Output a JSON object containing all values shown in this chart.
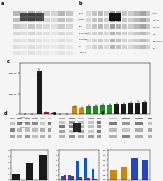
{
  "bg_color": "#f5f5f5",
  "panel_c_bars": [
    800,
    1500,
    420000,
    15000,
    9000,
    4000,
    2500,
    75000,
    62000,
    78000,
    82000,
    88000,
    92000,
    95000,
    100000,
    105000,
    112000,
    118000
  ],
  "panel_c_colors": [
    "#1a1a1a",
    "#1a1a1a",
    "#1a1a1a",
    "#cc1111",
    "#cc1111",
    "#cc1111",
    "#cc1111",
    "#cc8800",
    "#cc8800",
    "#228B22",
    "#228B22",
    "#228B22",
    "#228B22",
    "#1a1a1a",
    "#1a1a1a",
    "#1a1a1a",
    "#1a1a1a",
    "#1a1a1a"
  ],
  "panel_c_errors": [
    100,
    200,
    18000,
    1500,
    1000,
    500,
    300,
    6000,
    5500,
    7000,
    7500,
    8000,
    8500,
    9000,
    9500,
    10000,
    10500,
    11000
  ],
  "panel_c_ylim": [
    0,
    500000
  ],
  "panel_c_yticks": [
    0,
    200000,
    400000
  ],
  "panel_c_yticklabels": [
    "0",
    "200000",
    "400000"
  ],
  "panel_d_bars": [
    1.0,
    2.8,
    4.2
  ],
  "panel_d_colors": [
    "#1a1a1a",
    "#1a1a1a",
    "#1a1a1a"
  ],
  "panel_e_bars_blue": [
    0.8,
    1.0,
    3.8,
    4.5,
    2.2
  ],
  "panel_e_bars_red": [
    0.9,
    0.7,
    0.5,
    0.3,
    0.2
  ],
  "panel_f_bars": [
    1.0,
    1.3,
    2.2,
    2.0
  ],
  "panel_f_colors": [
    "#cc8800",
    "#cc8800",
    "#2244cc",
    "#2244cc"
  ],
  "wb_bg": "#d8d8d8",
  "wb_band_color1": "#1a1a1a",
  "wb_band_color2": "#555555",
  "wb_band_color3": "#888888"
}
